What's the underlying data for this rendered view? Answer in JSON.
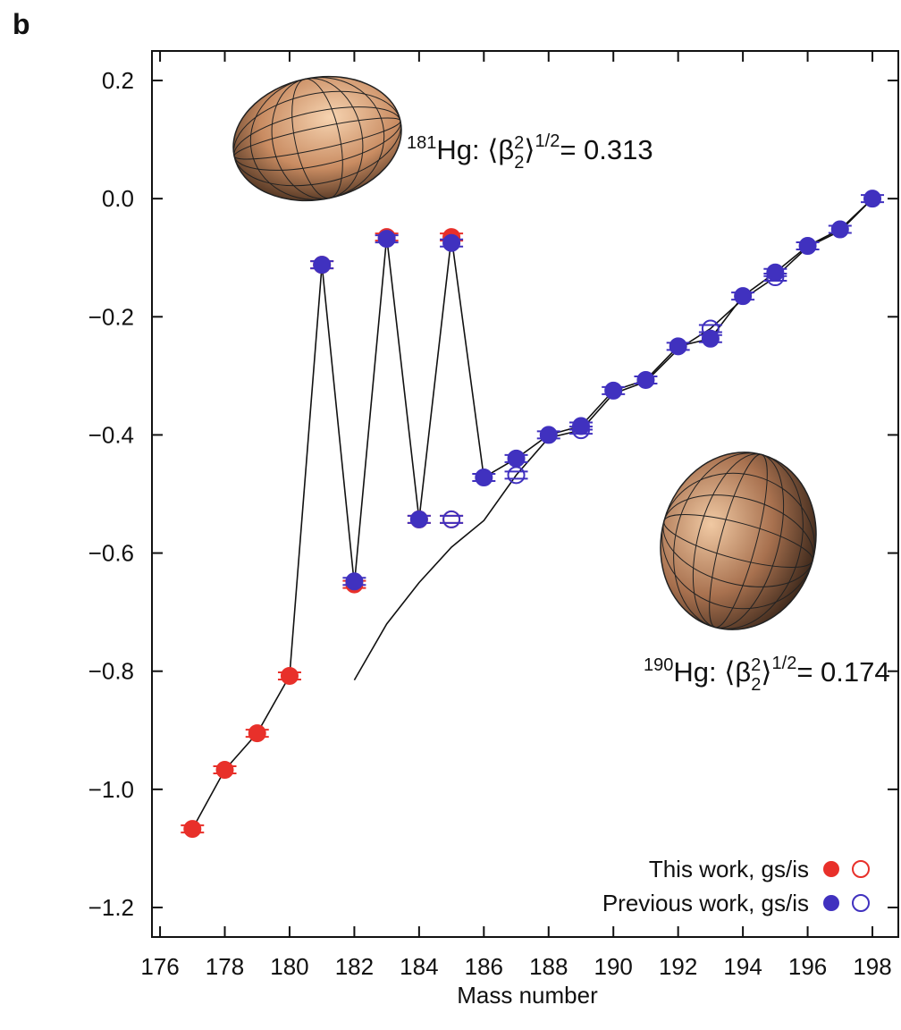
{
  "chart_data": {
    "type": "line",
    "panel_label": "b",
    "x_label": "Mass number",
    "xlim": [
      175.75,
      198.8
    ],
    "ylim": [
      -1.25,
      0.25
    ],
    "xticks": [
      176,
      178,
      180,
      182,
      184,
      186,
      188,
      190,
      192,
      194,
      196,
      198
    ],
    "yticks": [
      0.2,
      {
        "value": 0,
        "label": "0.0"
      },
      {
        "value": -0.2,
        "label": "−0.2"
      },
      {
        "value": -0.4,
        "label": "−0.4"
      },
      {
        "value": -0.6,
        "label": "−0.6"
      },
      {
        "value": -0.8,
        "label": "−0.8"
      },
      {
        "value": -1,
        "label": "−1.0"
      },
      {
        "value": -1.2,
        "label": "−1.2"
      }
    ],
    "x": [
      177,
      178,
      179,
      180,
      181,
      182,
      183,
      184,
      185,
      186,
      187,
      188,
      189,
      190,
      191,
      192,
      193,
      194,
      195,
      196,
      197,
      198
    ],
    "series": [
      {
        "name": "This work, gs/is",
        "color": "#e8302a",
        "gs": [
          -1.067,
          -0.967,
          -0.905,
          -0.808,
          -0.112,
          -0.653,
          -0.065,
          -0.543,
          -0.065,
          null,
          null,
          null,
          null,
          null,
          null,
          null,
          null,
          null,
          null,
          null,
          null,
          null
        ],
        "is": [
          null,
          null,
          null,
          null,
          null,
          null,
          null,
          null,
          -0.543,
          null,
          null,
          null,
          null,
          null,
          null,
          null,
          null,
          null,
          null,
          null,
          null,
          null
        ]
      },
      {
        "name": "Previous work, gs/is",
        "color": "#4031bf",
        "gs": [
          null,
          null,
          null,
          null,
          -0.112,
          -0.648,
          -0.068,
          -0.543,
          -0.075,
          -0.472,
          -0.44,
          -0.4,
          -0.385,
          -0.325,
          -0.307,
          -0.25,
          -0.237,
          -0.165,
          -0.125,
          -0.08,
          -0.052,
          0
        ],
        "is": [
          null,
          null,
          null,
          null,
          null,
          null,
          null,
          null,
          -0.543,
          null,
          -0.468,
          null,
          -0.392,
          null,
          null,
          null,
          -0.22,
          null,
          -0.133,
          null,
          null,
          null
        ]
      }
    ],
    "lines": [
      {
        "x": [
          177,
          178,
          179,
          180,
          181,
          182,
          183,
          184,
          185,
          186,
          187,
          188,
          189,
          190,
          191,
          192,
          193,
          194,
          195,
          196,
          197,
          198
        ],
        "values": [
          -1.067,
          -0.967,
          -0.905,
          -0.808,
          -0.112,
          -0.653,
          -0.065,
          -0.543,
          -0.065,
          -0.472,
          -0.44,
          -0.4,
          -0.385,
          -0.325,
          -0.307,
          -0.25,
          -0.237,
          -0.165,
          -0.125,
          -0.08,
          -0.052,
          0
        ]
      },
      {
        "x": [
          182,
          183,
          184,
          185,
          186,
          187,
          188,
          189,
          190,
          191,
          192,
          193,
          194,
          195,
          196,
          197,
          198
        ],
        "values": [
          -0.815,
          -0.72,
          -0.65,
          -0.59,
          -0.545,
          -0.468,
          -0.405,
          -0.392,
          -0.33,
          -0.31,
          -0.255,
          -0.22,
          -0.17,
          -0.133,
          -0.082,
          -0.055,
          0
        ]
      }
    ],
    "annotations": [
      {
        "mass": "181",
        "text": "Hg: ⟨β",
        "sup": "2",
        "sub": "2",
        "close": "⟩",
        "exp": "1/2",
        "value": "= 0.313"
      },
      {
        "mass": "190",
        "text": "Hg: ⟨β",
        "sup": "2",
        "sub": "2",
        "close": "⟩",
        "exp": "1/2",
        "value": "= 0.174"
      }
    ]
  }
}
